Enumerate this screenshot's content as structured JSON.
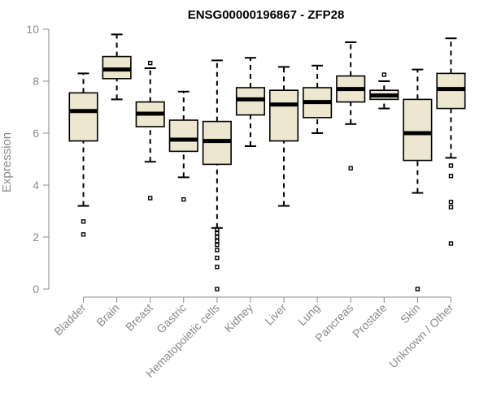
{
  "chart_data": {
    "type": "boxplot",
    "title": "ENSG00000196867 - ZFP28",
    "ylabel": "Expression",
    "xlabel": "",
    "ylim": [
      0,
      10
    ],
    "yticks": [
      0,
      2,
      4,
      6,
      8,
      10
    ],
    "grid": false,
    "colors": {
      "box_fill": "#ede7cf",
      "box_stroke": "#000000",
      "axis": "#8a8a8a"
    },
    "categories": [
      "Bladder",
      "Brain",
      "Breast",
      "Gastric",
      "Hematopoietic cells",
      "Kidney",
      "Liver",
      "Lung",
      "Pancreas",
      "Prostate",
      "Skin",
      "Unknown / Other"
    ],
    "boxes": [
      {
        "category": "Bladder",
        "whisker_low": 3.2,
        "q1": 5.7,
        "median": 6.85,
        "q3": 7.55,
        "whisker_high": 8.3,
        "outliers": [
          2.6,
          2.1
        ]
      },
      {
        "category": "Brain",
        "whisker_low": 7.3,
        "q1": 8.1,
        "median": 8.45,
        "q3": 8.95,
        "whisker_high": 9.8,
        "outliers": []
      },
      {
        "category": "Breast",
        "whisker_low": 4.9,
        "q1": 6.25,
        "median": 6.75,
        "q3": 7.2,
        "whisker_high": 8.5,
        "outliers": [
          8.7,
          3.5
        ]
      },
      {
        "category": "Gastric",
        "whisker_low": 4.3,
        "q1": 5.3,
        "median": 5.75,
        "q3": 6.5,
        "whisker_high": 7.6,
        "outliers": [
          3.45
        ]
      },
      {
        "category": "Hematopoietic cells",
        "whisker_low": 2.35,
        "q1": 4.8,
        "median": 5.7,
        "q3": 6.45,
        "whisker_high": 8.8,
        "outliers": [
          2.3,
          2.15,
          2.0,
          1.85,
          1.7,
          1.5,
          1.2,
          0.85,
          0.0
        ]
      },
      {
        "category": "Kidney",
        "whisker_low": 5.5,
        "q1": 6.7,
        "median": 7.3,
        "q3": 7.75,
        "whisker_high": 8.9,
        "outliers": []
      },
      {
        "category": "Liver",
        "whisker_low": 3.2,
        "q1": 5.7,
        "median": 7.1,
        "q3": 7.65,
        "whisker_high": 8.55,
        "outliers": []
      },
      {
        "category": "Lung",
        "whisker_low": 6.0,
        "q1": 6.6,
        "median": 7.2,
        "q3": 7.75,
        "whisker_high": 8.6,
        "outliers": []
      },
      {
        "category": "Pancreas",
        "whisker_low": 6.35,
        "q1": 7.2,
        "median": 7.7,
        "q3": 8.2,
        "whisker_high": 9.5,
        "outliers": [
          4.65
        ]
      },
      {
        "category": "Prostate",
        "whisker_low": 6.95,
        "q1": 7.3,
        "median": 7.45,
        "q3": 7.65,
        "whisker_high": 8.0,
        "outliers": [
          8.25
        ]
      },
      {
        "category": "Skin",
        "whisker_low": 3.7,
        "q1": 4.95,
        "median": 6.0,
        "q3": 7.3,
        "whisker_high": 8.45,
        "outliers": [
          0.0
        ]
      },
      {
        "category": "Unknown / Other",
        "whisker_low": 5.05,
        "q1": 6.95,
        "median": 7.7,
        "q3": 8.3,
        "whisker_high": 9.65,
        "outliers": [
          4.75,
          4.35,
          3.35,
          3.15,
          1.75
        ]
      }
    ]
  }
}
